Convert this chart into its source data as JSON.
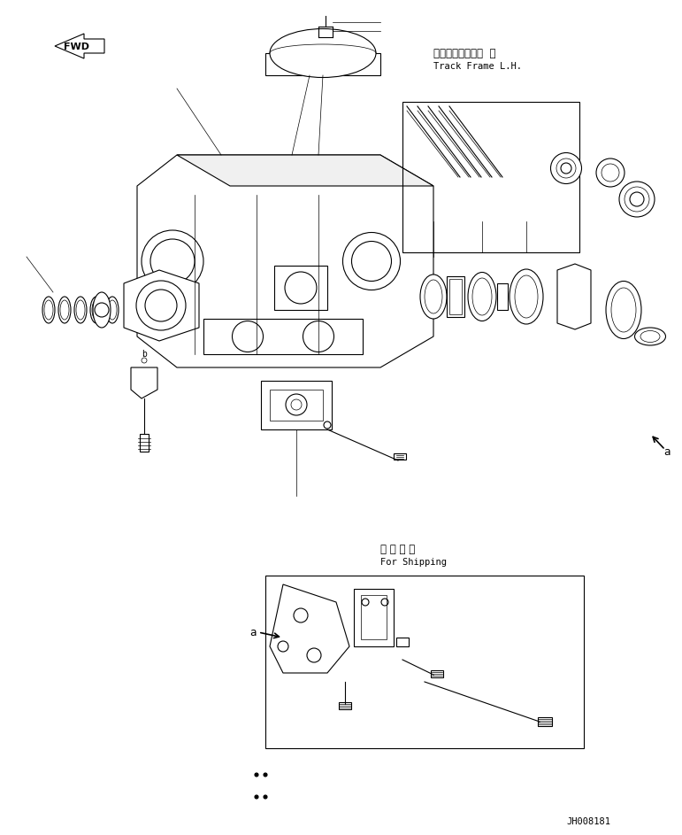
{
  "bg_color": "#ffffff",
  "line_color": "#000000",
  "fig_width": 7.71,
  "fig_height": 9.43,
  "label_track_frame_jp": "トラックフレーム  左",
  "label_track_frame_en": "Track Frame L.H.",
  "label_shipping_jp": "連 携 部 品",
  "label_shipping_en": "For Shipping",
  "label_fwd": "FWD",
  "label_a": "a",
  "label_b": "b",
  "label_code": "JH008181",
  "lw": 0.8,
  "thin_lw": 0.5
}
